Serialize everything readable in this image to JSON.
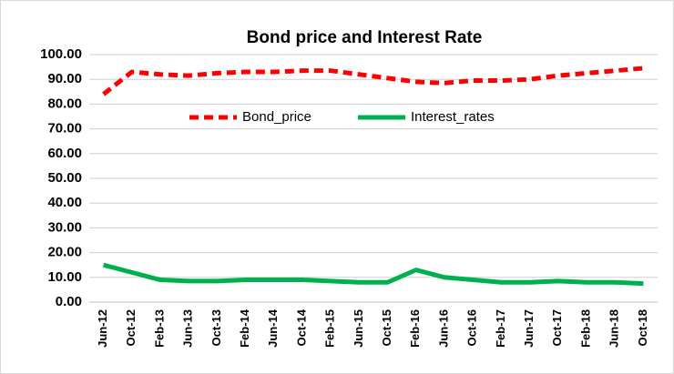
{
  "chart_data": {
    "type": "line",
    "title": "Bond price and Interest Rate",
    "categories": [
      "Jun-12",
      "Oct-12",
      "Feb-13",
      "Jun-13",
      "Oct-13",
      "Feb-14",
      "Jun-14",
      "Oct-14",
      "Feb-15",
      "Jun-15",
      "Oct-15",
      "Feb-16",
      "Jun-16",
      "Oct-16",
      "Feb-17",
      "Jun-17",
      "Oct-17",
      "Feb-18",
      "Jun-18",
      "Oct-18"
    ],
    "series": [
      {
        "name": "Bond_price",
        "color": "#ff0000",
        "dash": true,
        "values": [
          84,
          93,
          92,
          91.5,
          92.5,
          93,
          93,
          93.5,
          93.5,
          92,
          90.5,
          89,
          88.5,
          89.5,
          89.5,
          90,
          91.5,
          92.5,
          93.5,
          94.5
        ]
      },
      {
        "name": "Interest_rates",
        "color": "#00b050",
        "dash": false,
        "values": [
          15,
          12,
          9,
          8.5,
          8.5,
          9,
          9,
          9,
          8.5,
          8,
          8,
          13,
          10,
          9,
          8,
          8,
          8.5,
          8,
          8,
          7.5
        ]
      }
    ],
    "ylim": [
      0,
      100
    ],
    "yticks": [
      {
        "value": 0,
        "label": "0.00"
      },
      {
        "value": 10,
        "label": "10.00"
      },
      {
        "value": 20,
        "label": "20.00"
      },
      {
        "value": 30,
        "label": "30.00"
      },
      {
        "value": 40,
        "label": "40.00"
      },
      {
        "value": 50,
        "label": "50.00"
      },
      {
        "value": 60,
        "label": "60.00"
      },
      {
        "value": 70,
        "label": "70.00"
      },
      {
        "value": 80,
        "label": "80.00"
      },
      {
        "value": 90,
        "label": "90.00"
      },
      {
        "value": 100,
        "label": "100.00"
      }
    ],
    "grid": true,
    "legend": "top"
  }
}
